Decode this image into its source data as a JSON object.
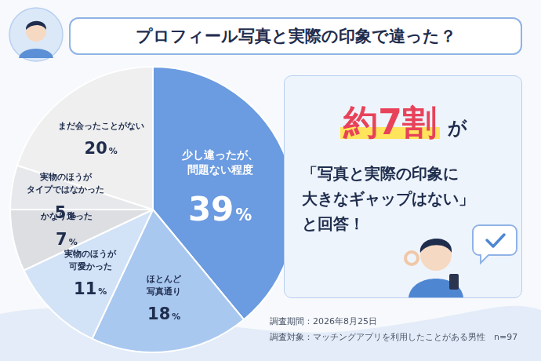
{
  "chart_data": {
    "type": "pie",
    "title": "プロフィール写真と実際の印象で違った？",
    "categories": [
      "少し違ったが、\n問題ない程度",
      "ほとんど\n写真通り",
      "実物のほうが\n可愛かった",
      "かなり違った",
      "実物のほうが\nタイプではなかった",
      "まだ会ったことがない"
    ],
    "values": [
      39,
      18,
      11,
      7,
      5,
      20
    ],
    "value_labels": [
      "39%",
      "18%",
      "11%",
      "7%",
      "5%",
      "20%"
    ],
    "colors": [
      "#6b9be0",
      "#a9c8f0",
      "#d2e2f7",
      "#dcdee2",
      "#e7e8eb",
      "#efefef"
    ],
    "data_labels": true,
    "annotations": {
      "callout_highlight": "約7割",
      "callout_particle": "が",
      "callout_lines": [
        "「写真と実際の印象に",
        "大きなギャップはない」",
        "と回答！"
      ]
    },
    "notes": [
      "調査期間：2026年8月25日",
      "調査対象：マッチングアプリを利用したことがある男性　n=97"
    ]
  }
}
